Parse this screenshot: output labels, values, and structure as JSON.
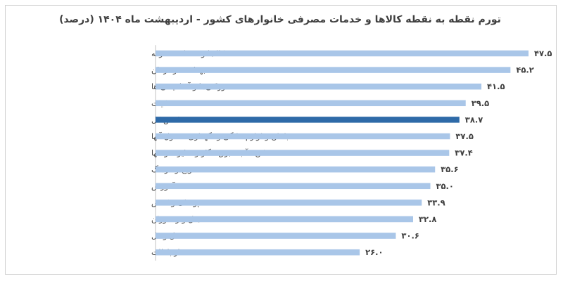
{
  "chart_data": {
    "type": "bar",
    "orientation": "horizontal",
    "title": "تورم نقطه به نقطه کالاها و خدمات مصرفی خانوارهای کشور - اردیبهشت ماه ۱۴۰۴ (درصد)",
    "categories": [
      "کالاها و خدمات متفرقه",
      "بهداشت و درمان",
      "خوراکی‌ها و آشامیدنی ها",
      "دخانیات",
      "شاخص کل",
      "مبلمان و لوازم خانگی و نگهداری معمول آنها",
      "مسکن ، آب ، برق ، گاز و سایر سوختها",
      "تفریح و فرهنگ",
      "آموزش",
      "پوشاک و کفش",
      "هتل و رستوران",
      "حمل ونقل",
      "ارتباطات"
    ],
    "values": [
      47.5,
      45.2,
      41.5,
      39.5,
      38.7,
      37.5,
      37.4,
      35.6,
      35.0,
      33.9,
      32.8,
      30.6,
      26.0
    ],
    "value_labels": [
      "۴۷.۵",
      "۴۵.۲",
      "۴۱.۵",
      "۳۹.۵",
      "۳۸.۷",
      "۳۷.۵",
      "۳۷.۴",
      "۳۵.۶",
      "۳۵.۰",
      "۳۳.۹",
      "۳۲.۸",
      "۳۰.۶",
      "۲۶.۰"
    ],
    "highlight_index": 4,
    "xlim": [
      0,
      47.5
    ],
    "grid": false,
    "axis_line": true,
    "colors": {
      "bar": "#a9c6e8",
      "highlight": "#2e6aa8",
      "axis": "#c0c0c0",
      "text": "#404040"
    }
  }
}
